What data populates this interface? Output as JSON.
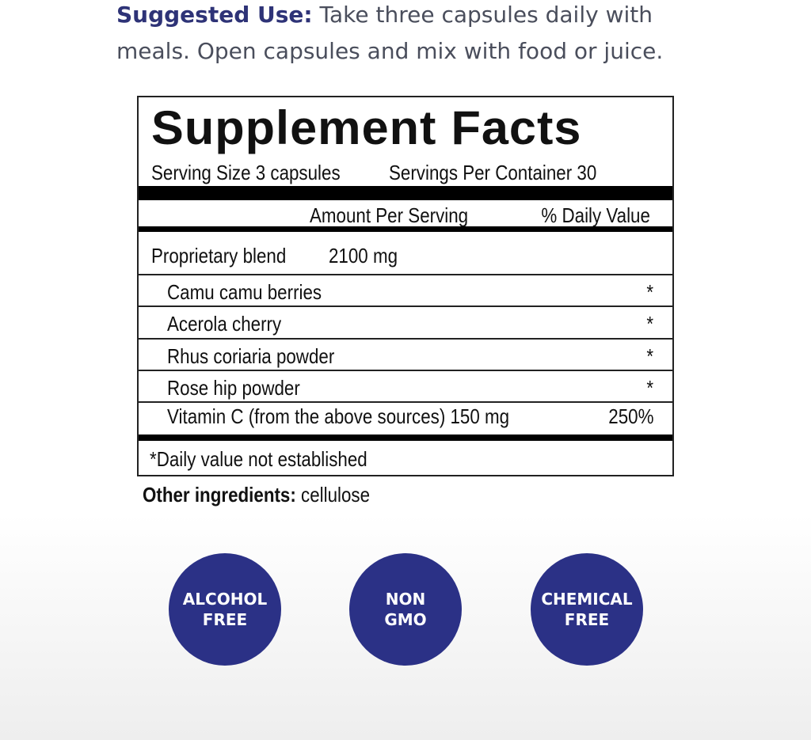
{
  "suggested_use": {
    "label": "Suggested Use:",
    "text": " Take three capsules daily with meals. Open capsules and mix with food or juice."
  },
  "facts": {
    "title": "Supplement Facts",
    "serving_size": "Serving Size 3 capsules",
    "servings_per_container": "Servings Per Container 30",
    "col_amount": "Amount Per Serving",
    "col_dv": "% Daily Value",
    "blend": {
      "name": "Proprietary blend",
      "amount": "2100 mg"
    },
    "ingredients": [
      {
        "name": "Camu camu berries",
        "dv": "*"
      },
      {
        "name": "Acerola cherry",
        "dv": "*"
      },
      {
        "name": "Rhus coriaria powder",
        "dv": "*"
      },
      {
        "name": "Rose hip powder",
        "dv": "*"
      },
      {
        "name": "Vitamin C (from the above sources) 150 mg",
        "dv": "250%"
      }
    ],
    "footnote": "*Daily value not established"
  },
  "other": {
    "label": "Other ingredients:",
    "value": " cellulose"
  },
  "badges": [
    {
      "line1": "ALCOHOL",
      "line2": "FREE"
    },
    {
      "line1": "NON",
      "line2": "GMO"
    },
    {
      "line1": "CHEMICAL",
      "line2": "FREE"
    }
  ],
  "colors": {
    "brand": "#2b3186",
    "text": "#4a4e5c"
  }
}
